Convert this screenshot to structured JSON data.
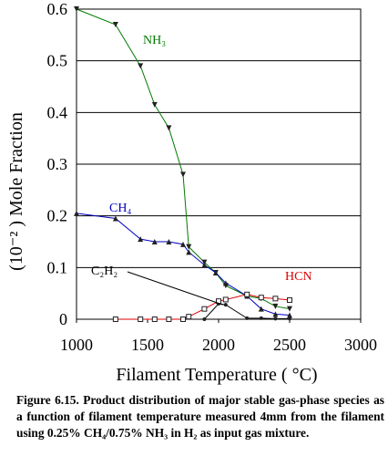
{
  "chart_data": {
    "type": "line",
    "xlabel": "Filament Temperature ( °C)",
    "ylabel": "(10⁻² ) Mole Fraction",
    "xlim": [
      1000,
      3000
    ],
    "ylim": [
      0,
      0.6
    ],
    "x_ticks": [
      "1000",
      "1500",
      "2000",
      "2500",
      "3000"
    ],
    "y_ticks": [
      "0",
      "0.1",
      "0.2",
      "0.3",
      "0.4",
      "0.5",
      "0.6"
    ],
    "grid": "horizontal",
    "series": [
      {
        "name": "NH3",
        "label": "NH₃",
        "color": "#007a00",
        "marker": "triangle-down",
        "x": [
          1000,
          1275,
          1450,
          1550,
          1650,
          1750,
          1790,
          1900,
          1980,
          2050,
          2200,
          2300,
          2400,
          2500
        ],
        "y": [
          0.6,
          0.57,
          0.49,
          0.415,
          0.37,
          0.28,
          0.14,
          0.11,
          0.09,
          0.065,
          0.045,
          0.04,
          0.025,
          0.02
        ]
      },
      {
        "name": "CH4",
        "label": "CH₄",
        "color": "#0000c0",
        "marker": "triangle-up",
        "x": [
          1000,
          1275,
          1450,
          1550,
          1650,
          1750,
          1790,
          1900,
          1980,
          2050,
          2200,
          2300,
          2400,
          2500
        ],
        "y": [
          0.205,
          0.195,
          0.155,
          0.15,
          0.15,
          0.145,
          0.13,
          0.105,
          0.09,
          0.07,
          0.045,
          0.02,
          0.01,
          0.008
        ]
      },
      {
        "name": "C2H2",
        "label": "C₂H₂",
        "color": "#000000",
        "marker": "circle",
        "x": [
          1275,
          1450,
          1550,
          1650,
          1750,
          1900,
          2000,
          2050,
          2200,
          2300,
          2400,
          2500
        ],
        "y": [
          0,
          0,
          0,
          0,
          0,
          0,
          0.03,
          0.028,
          0.002,
          0.002,
          0.001,
          0.001
        ]
      },
      {
        "name": "HCN",
        "label": "HCN",
        "color": "#e00000",
        "marker": "square-open",
        "x": [
          1275,
          1450,
          1550,
          1650,
          1750,
          1790,
          1900,
          2000,
          2050,
          2200,
          2300,
          2400,
          2500
        ],
        "y": [
          0,
          0,
          0,
          0,
          0,
          0.005,
          0.02,
          0.035,
          0.038,
          0.048,
          0.042,
          0.04,
          0.037
        ]
      }
    ],
    "annotations": [
      {
        "text": "C₂H₂",
        "points_to": [
          2030,
          0.028
        ]
      }
    ]
  },
  "caption": "Figure 6.15. Product distribution of major stable gas-phase species as a function of filament temperature measured 4mm from the filament using 0.25% CH₄/0.75% NH₃ in H₂ as input gas mixture."
}
